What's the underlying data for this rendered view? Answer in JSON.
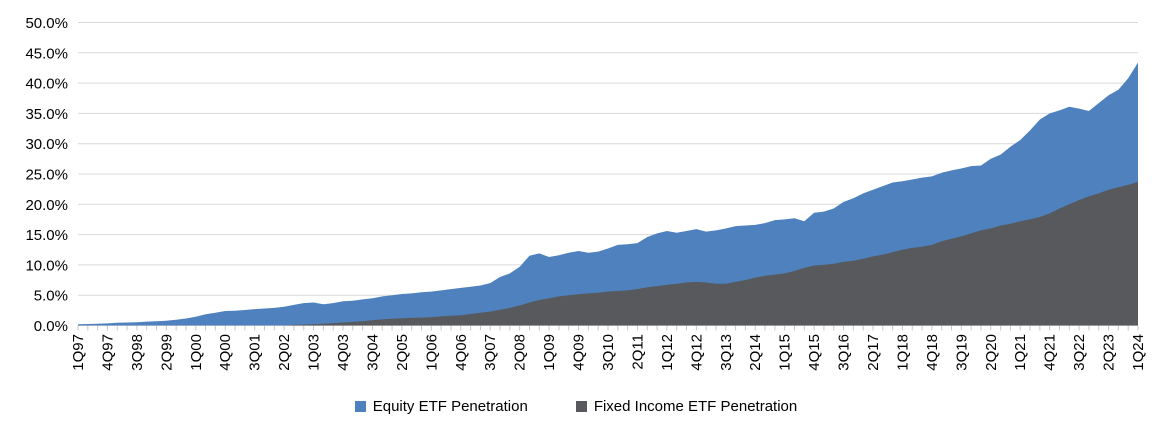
{
  "chart_data": {
    "type": "area",
    "title": "",
    "xlabel": "",
    "ylabel": "",
    "n_points": 109,
    "x_tick_step": 3,
    "x_tick_labels": [
      "1Q97",
      "4Q97",
      "3Q98",
      "2Q99",
      "1Q00",
      "4Q00",
      "3Q01",
      "2Q02",
      "1Q03",
      "4Q03",
      "3Q04",
      "2Q05",
      "1Q06",
      "4Q06",
      "3Q07",
      "2Q08",
      "1Q09",
      "4Q09",
      "3Q10",
      "2Q11",
      "1Q12",
      "4Q12",
      "3Q13",
      "2Q14",
      "1Q15",
      "4Q15",
      "3Q16",
      "2Q17",
      "1Q18",
      "4Q18",
      "3Q19",
      "2Q20",
      "1Q21",
      "4Q21",
      "3Q22",
      "2Q23",
      "1Q24"
    ],
    "ylim": [
      0,
      50
    ],
    "y_tick_step": 5,
    "y_tick_labels": [
      "0.0%",
      "5.0%",
      "10.0%",
      "15.0%",
      "20.0%",
      "25.0%",
      "30.0%",
      "35.0%",
      "40.0%",
      "45.0%",
      "50.0%"
    ],
    "grid": "horizontal",
    "legend_position": "bottom",
    "series": [
      {
        "name": "Equity ETF Penetration",
        "color": "#4E81BD",
        "values": [
          0.2,
          0.25,
          0.3,
          0.35,
          0.45,
          0.5,
          0.55,
          0.65,
          0.7,
          0.8,
          0.95,
          1.15,
          1.45,
          1.85,
          2.1,
          2.4,
          2.45,
          2.55,
          2.7,
          2.8,
          2.9,
          3.1,
          3.4,
          3.7,
          3.8,
          3.5,
          3.7,
          4.0,
          4.1,
          4.3,
          4.5,
          4.8,
          5.0,
          5.2,
          5.3,
          5.5,
          5.6,
          5.8,
          6.0,
          6.2,
          6.4,
          6.6,
          7.0,
          8.0,
          8.6,
          9.7,
          11.5,
          11.9,
          11.3,
          11.6,
          12.0,
          12.3,
          12.0,
          12.2,
          12.7,
          13.3,
          13.4,
          13.6,
          14.6,
          15.2,
          15.6,
          15.3,
          15.6,
          15.9,
          15.5,
          15.7,
          16.0,
          16.4,
          16.5,
          16.6,
          16.9,
          17.4,
          17.5,
          17.7,
          17.2,
          18.6,
          18.8,
          19.3,
          20.4,
          21.0,
          21.8,
          22.4,
          23.0,
          23.6,
          23.8,
          24.1,
          24.4,
          24.6,
          25.2,
          25.6,
          25.9,
          26.3,
          26.4,
          27.5,
          28.2,
          29.5,
          30.6,
          32.2,
          34.0,
          35.0,
          35.5,
          36.1,
          35.8,
          35.4,
          36.7,
          38.0,
          38.9,
          40.8,
          43.4
        ]
      },
      {
        "name": "Fixed Income ETF Penetration",
        "color": "#57595C",
        "values": [
          0,
          0,
          0,
          0,
          0,
          0,
          0,
          0,
          0,
          0,
          0,
          0,
          0,
          0,
          0,
          0,
          0,
          0,
          0,
          0,
          0,
          0,
          0.1,
          0.15,
          0.2,
          0.3,
          0.4,
          0.5,
          0.6,
          0.7,
          0.85,
          1.0,
          1.1,
          1.2,
          1.25,
          1.3,
          1.35,
          1.5,
          1.6,
          1.7,
          1.9,
          2.1,
          2.3,
          2.6,
          2.9,
          3.3,
          3.8,
          4.2,
          4.5,
          4.8,
          5.0,
          5.15,
          5.3,
          5.4,
          5.6,
          5.7,
          5.8,
          6.0,
          6.3,
          6.5,
          6.7,
          6.9,
          7.1,
          7.2,
          7.1,
          6.9,
          6.9,
          7.2,
          7.5,
          7.9,
          8.2,
          8.4,
          8.6,
          9.0,
          9.5,
          9.9,
          10.0,
          10.2,
          10.5,
          10.7,
          11.0,
          11.4,
          11.7,
          12.1,
          12.5,
          12.8,
          13.0,
          13.3,
          13.9,
          14.3,
          14.7,
          15.2,
          15.7,
          16.0,
          16.5,
          16.8,
          17.2,
          17.5,
          17.9,
          18.5,
          19.3,
          20.0,
          20.7,
          21.3,
          21.8,
          22.4,
          22.8,
          23.2,
          23.7
        ]
      }
    ],
    "colors": {
      "gridline": "#D9D9D9",
      "axis_tick": "#C9C9C9",
      "axis_label_text": "#000000",
      "background": "#FFFFFF"
    }
  }
}
